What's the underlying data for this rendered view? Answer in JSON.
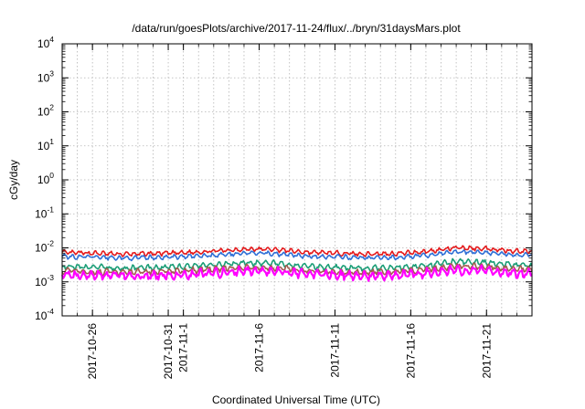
{
  "chart_data": {
    "type": "line",
    "title": "/data/run/goesPlots/archive/2017-11-24/flux/../bryn/31daysMars.plot",
    "xlabel": "Coordinated Universal Time (UTC)",
    "ylabel": "cGy/day",
    "yscale": "log",
    "ylim": [
      0.0001,
      10000
    ],
    "xlim": [
      "2017-10-24",
      "2017-11-24"
    ],
    "grid": true,
    "y_ticks": [
      {
        "base": "10",
        "exp": "-4"
      },
      {
        "base": "10",
        "exp": "-3"
      },
      {
        "base": "10",
        "exp": "-2"
      },
      {
        "base": "10",
        "exp": "-1"
      },
      {
        "base": "10",
        "exp": "0"
      },
      {
        "base": "10",
        "exp": "1"
      },
      {
        "base": "10",
        "exp": "2"
      },
      {
        "base": "10",
        "exp": "3"
      },
      {
        "base": "10",
        "exp": "4"
      }
    ],
    "x_ticks": [
      {
        "date": "2017-10-26",
        "lines": [
          "2017-10-26"
        ]
      },
      {
        "date": "2017-10-31",
        "lines": [
          "2017-10-31"
        ]
      },
      {
        "date": "2017-11-01",
        "lines": [
          "2017-11-1"
        ]
      },
      {
        "date": "2017-11-06",
        "lines": [
          "2017-11-6"
        ]
      },
      {
        "date": "2017-11-11",
        "lines": [
          "2017-11-11"
        ]
      },
      {
        "date": "2017-11-16",
        "lines": [
          "2017-11-16"
        ]
      },
      {
        "date": "2017-11-21",
        "lines": [
          "2017-11-21"
        ]
      }
    ],
    "x": [
      "2017-10-24",
      "2017-10-26",
      "2017-10-28",
      "2017-10-30",
      "2017-11-01",
      "2017-11-03",
      "2017-11-05",
      "2017-11-07",
      "2017-11-09",
      "2017-11-11",
      "2017-11-13",
      "2017-11-15",
      "2017-11-17",
      "2017-11-19",
      "2017-11-21",
      "2017-11-23",
      "2017-11-24"
    ],
    "series": [
      {
        "color": "#e41a1c",
        "values": [
          0.0072,
          0.007,
          0.0065,
          0.0068,
          0.0072,
          0.008,
          0.0092,
          0.009,
          0.0075,
          0.007,
          0.0066,
          0.0068,
          0.0078,
          0.01,
          0.0095,
          0.008,
          0.0078
        ]
      },
      {
        "color": "#2f6fd6",
        "values": [
          0.0055,
          0.0054,
          0.005,
          0.0052,
          0.0055,
          0.0061,
          0.007,
          0.0068,
          0.0058,
          0.0054,
          0.0051,
          0.0052,
          0.006,
          0.0077,
          0.0073,
          0.0062,
          0.006
        ]
      },
      {
        "color": "#1b9e77",
        "values": [
          0.0028,
          0.0027,
          0.0025,
          0.0026,
          0.0028,
          0.0031,
          0.0036,
          0.0035,
          0.0029,
          0.0027,
          0.0025,
          0.0026,
          0.003,
          0.0039,
          0.0037,
          0.0031,
          0.003
        ]
      },
      {
        "color": "#a35c4f",
        "values": [
          0.0021,
          0.002,
          0.0019,
          0.002,
          0.0021,
          0.0024,
          0.0027,
          0.0026,
          0.0022,
          0.002,
          0.0019,
          0.002,
          0.0023,
          0.0029,
          0.0028,
          0.0024,
          0.0023
        ]
      },
      {
        "color": "#ff00ff",
        "values": [
          0.0016,
          0.0016,
          0.0015,
          0.0015,
          0.0016,
          0.0018,
          0.0021,
          0.002,
          0.0017,
          0.0016,
          0.0015,
          0.0015,
          0.0018,
          0.0022,
          0.0021,
          0.0018,
          0.0017
        ]
      }
    ]
  }
}
